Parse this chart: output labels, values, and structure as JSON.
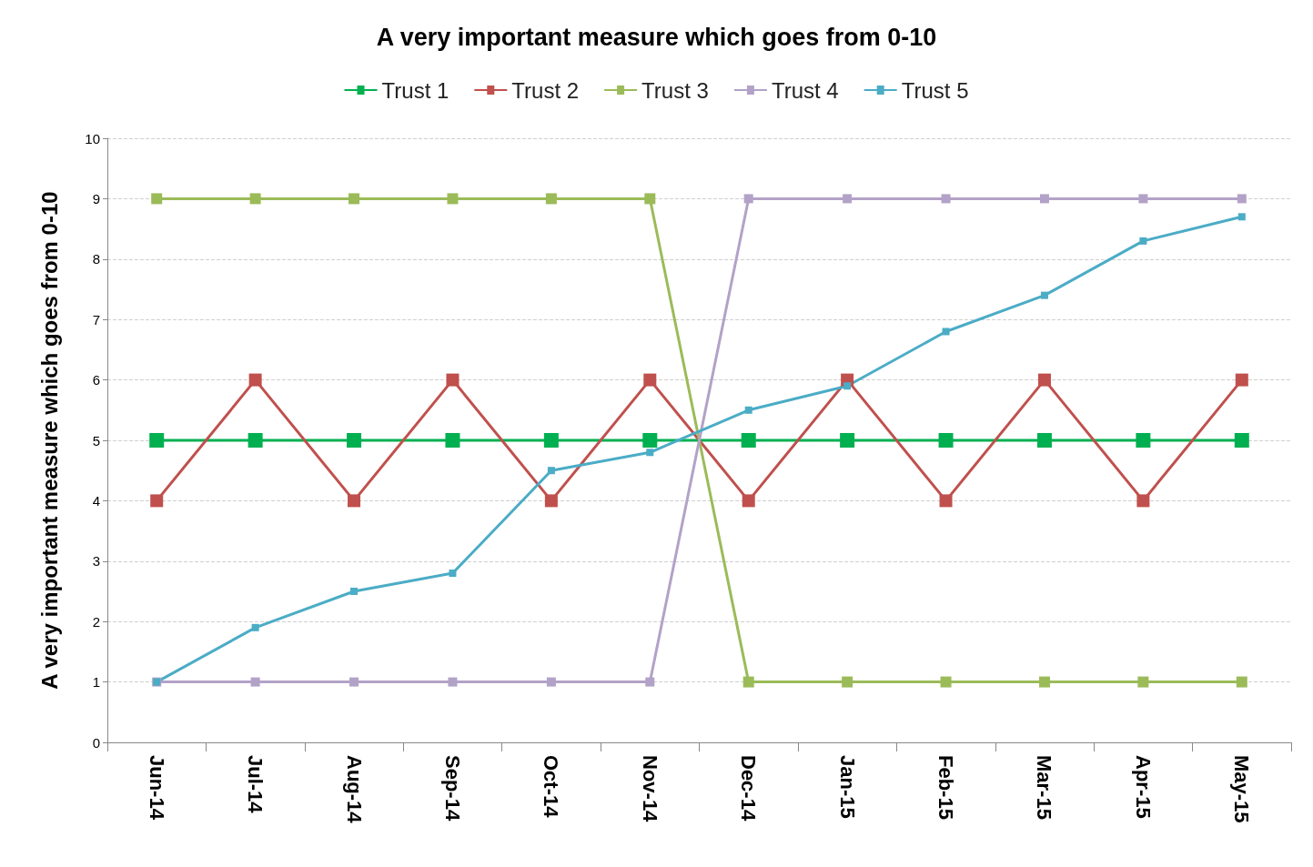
{
  "chart_data": {
    "type": "line",
    "title": "A very important measure which goes from 0-10",
    "ylabel": "A very important measure which goes from 0-10",
    "categories": [
      "Jun-14",
      "Jul-14",
      "Aug-14",
      "Sep-14",
      "Oct-14",
      "Nov-14",
      "Dec-14",
      "Jan-15",
      "Feb-15",
      "Mar-15",
      "Apr-15",
      "May-15"
    ],
    "series": [
      {
        "name": "Trust 1",
        "color": "#00b050",
        "values": [
          5,
          5,
          5,
          5,
          5,
          5,
          5,
          5,
          5,
          5,
          5,
          5
        ]
      },
      {
        "name": "Trust 2",
        "color": "#c0504d",
        "values": [
          4,
          6,
          4,
          6,
          4,
          6,
          4,
          6,
          4,
          6,
          4,
          6
        ]
      },
      {
        "name": "Trust 3",
        "color": "#9bbb59",
        "values": [
          9,
          9,
          9,
          9,
          9,
          9,
          1,
          1,
          1,
          1,
          1,
          1
        ]
      },
      {
        "name": "Trust 4",
        "color": "#b3a2c7",
        "values": [
          1,
          1,
          1,
          1,
          1,
          1,
          9,
          9,
          9,
          9,
          9,
          9
        ]
      },
      {
        "name": "Trust 5",
        "color": "#4bacc6",
        "values": [
          1,
          1.9,
          2.5,
          2.8,
          4.5,
          4.8,
          5.5,
          5.9,
          6.8,
          7.4,
          8.3,
          8.7
        ]
      }
    ],
    "ylim": [
      0,
      10
    ],
    "yticks": [
      0,
      1,
      2,
      3,
      4,
      5,
      6,
      7,
      8,
      9,
      10
    ],
    "grid": "y",
    "legend": "top",
    "marker": "square",
    "line_style": "solid"
  }
}
